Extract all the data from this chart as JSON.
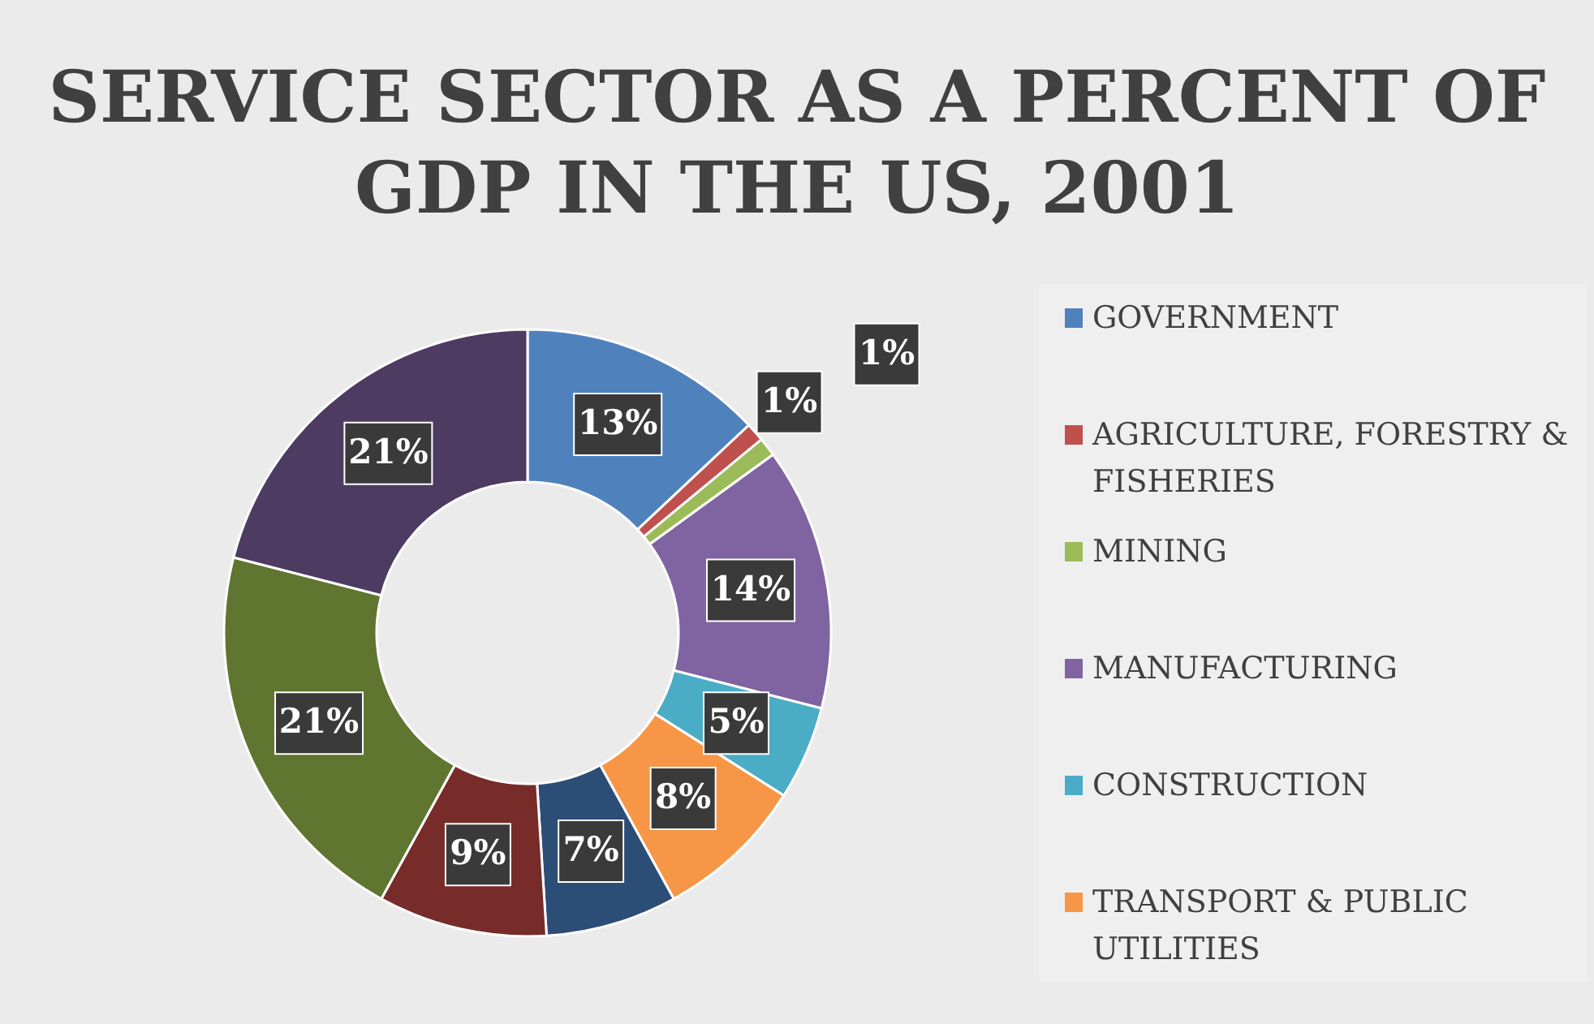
{
  "chart_data": {
    "type": "donut",
    "title": "SERVICE SECTOR AS A PERCENT OF GDP IN THE US, 2001",
    "categories": [
      "GOVERNMENT",
      "AGRICULTURE, FORESTRY & FISHERIES",
      "MINING",
      "MANUFACTURING",
      "CONSTRUCTION",
      "TRANSPORT & PUBLIC UTILITIES",
      null,
      null,
      null,
      null
    ],
    "values": [
      13,
      1,
      1,
      14,
      5,
      8,
      7,
      9,
      21,
      21
    ],
    "value_labels": [
      "13%",
      "1%",
      "1%",
      "14%",
      "5%",
      "8%",
      "7%",
      "9%",
      "21%",
      "21%"
    ],
    "colors": [
      "#4f81bd",
      "#c0504d",
      "#9bbb59",
      "#8064a2",
      "#4bacc6",
      "#f79646",
      "#2c4d75",
      "#772c2a",
      "#5f7530",
      "#4d3b62"
    ],
    "legend": "right"
  }
}
